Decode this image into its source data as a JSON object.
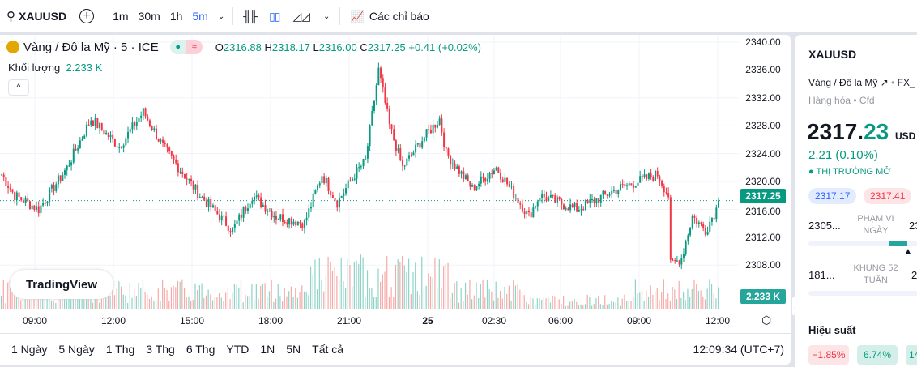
{
  "toolbar": {
    "symbol": "XAUUSD",
    "intervals": [
      "1m",
      "30m",
      "1h",
      "5m"
    ],
    "active_interval": "5m",
    "indicators": "Các chỉ báo"
  },
  "legend": {
    "title": "Vàng / Đô la Mỹ · 5 · ICE",
    "o": "2316.88",
    "h": "2318.17",
    "l": "2316.00",
    "c": "2317.25",
    "change": "+0.41 (+0.02%)",
    "volume_label": "Khối lượng",
    "volume": "2.233 K",
    "collapse": "^"
  },
  "logo": "TradingView",
  "price_axis": [
    "2340.00",
    "2336.00",
    "2332.00",
    "2328.00",
    "2324.00",
    "2320.00",
    "2316.00",
    "2312.00",
    "2308.00"
  ],
  "last_price": "2317.25",
  "last_volume": "2.233 K",
  "time_axis": [
    "09:00",
    "12:00",
    "15:00",
    "18:00",
    "21:00",
    "25",
    "02:30",
    "06:00",
    "09:00",
    "12:00"
  ],
  "ranges": [
    "1 Ngày",
    "5 Ngày",
    "1 Thg",
    "3 Thg",
    "6 Thg",
    "YTD",
    "1N",
    "5N",
    "Tất cả"
  ],
  "clock": "12:09:34 (UTC+7)",
  "colors": {
    "up": "#089981",
    "down": "#f23645",
    "accent": "#2962ff"
  },
  "chart_data": {
    "type": "candlestick",
    "ylim": [
      2304,
      2340
    ],
    "bars": 330,
    "anchors": [
      [
        0,
        2321
      ],
      [
        6,
        2318
      ],
      [
        17,
        2316
      ],
      [
        30,
        2322
      ],
      [
        41,
        2329
      ],
      [
        54,
        2325
      ],
      [
        65,
        2330
      ],
      [
        74,
        2325
      ],
      [
        91,
        2318
      ],
      [
        106,
        2313
      ],
      [
        115,
        2318
      ],
      [
        126,
        2315
      ],
      [
        139,
        2314
      ],
      [
        147,
        2321
      ],
      [
        154,
        2317
      ],
      [
        162,
        2321
      ],
      [
        167,
        2323
      ],
      [
        173,
        2336
      ],
      [
        178,
        2328
      ],
      [
        184,
        2322
      ],
      [
        193,
        2326
      ],
      [
        201,
        2329
      ],
      [
        204,
        2324
      ],
      [
        216,
        2319
      ],
      [
        227,
        2322
      ],
      [
        242,
        2315
      ],
      [
        247,
        2318
      ],
      [
        264,
        2316
      ],
      [
        283,
        2319
      ],
      [
        301,
        2321
      ],
      [
        306,
        2318
      ],
      [
        307,
        2308
      ],
      [
        312,
        2309
      ],
      [
        317,
        2315
      ],
      [
        323,
        2313
      ],
      [
        330,
        2317.25
      ]
    ]
  },
  "sidebar": {
    "symbol": "XAUUSD",
    "name": "Vàng / Đô la Mỹ",
    "exchange": "FX_",
    "category": "Hàng hóa",
    "type": "Cfd",
    "price_int": "2317.",
    "price_dec": "23",
    "currency": "USD",
    "change": "2.21 (0.10%)",
    "status": "THỊ TRƯỜNG MỞ",
    "bid": "2317.17",
    "ask": "2317.41",
    "day_low": "2305...",
    "day_label1": "PHẠM VI",
    "day_label2": "NGÀY",
    "day_high": "23",
    "wk_low": "181...",
    "wk_label1": "KHUNG 52",
    "wk_label2": "TUẦN",
    "wk_high": "2",
    "perf_title": "Hiệu suất",
    "perf": [
      "−1.85%",
      "6.74%",
      "14"
    ]
  }
}
